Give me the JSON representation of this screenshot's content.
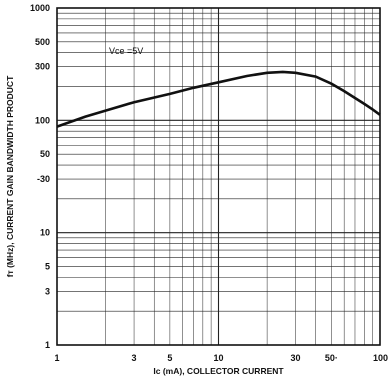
{
  "chart_data": {
    "type": "line",
    "title": "",
    "xlabel": "Ic (mA), COLLECTOR CURRENT",
    "ylabel": "fт (MHz), CURRENT GAIN BANDWIDTH PRODUCT",
    "xscale": "log",
    "yscale": "log",
    "xlim": [
      1,
      100
    ],
    "ylim": [
      1,
      1000
    ],
    "grid": true,
    "x_ticks": [
      {
        "v": 1,
        "label": "1"
      },
      {
        "v": 3,
        "label": "3"
      },
      {
        "v": 5,
        "label": "5"
      },
      {
        "v": 10,
        "label": "10"
      },
      {
        "v": 30,
        "label": "30"
      },
      {
        "v": 50,
        "label": "50·"
      },
      {
        "v": 100,
        "label": "100"
      }
    ],
    "y_ticks": [
      {
        "v": 1000,
        "label": "1000"
      },
      {
        "v": 500,
        "label": "500"
      },
      {
        "v": 300,
        "label": "300"
      },
      {
        "v": 100,
        "label": "100"
      },
      {
        "v": 50,
        "label": "50"
      },
      {
        "v": 30,
        "label": "-30"
      },
      {
        "v": 10,
        "label": "10"
      },
      {
        "v": 5,
        "label": "5"
      },
      {
        "v": 3,
        "label": "3"
      },
      {
        "v": 1,
        "label": "1"
      }
    ],
    "annotation": {
      "text": "Vce =5V",
      "x": 2.1,
      "y": 390
    },
    "series": [
      {
        "x": [
          1,
          1.5,
          2,
          3,
          5,
          7,
          10,
          15,
          20,
          25,
          30,
          40,
          50,
          60,
          70,
          80,
          90,
          100
        ],
        "y": [
          88,
          108,
          122,
          145,
          172,
          195,
          218,
          248,
          265,
          270,
          265,
          245,
          212,
          182,
          158,
          140,
          125,
          112
        ]
      }
    ]
  }
}
